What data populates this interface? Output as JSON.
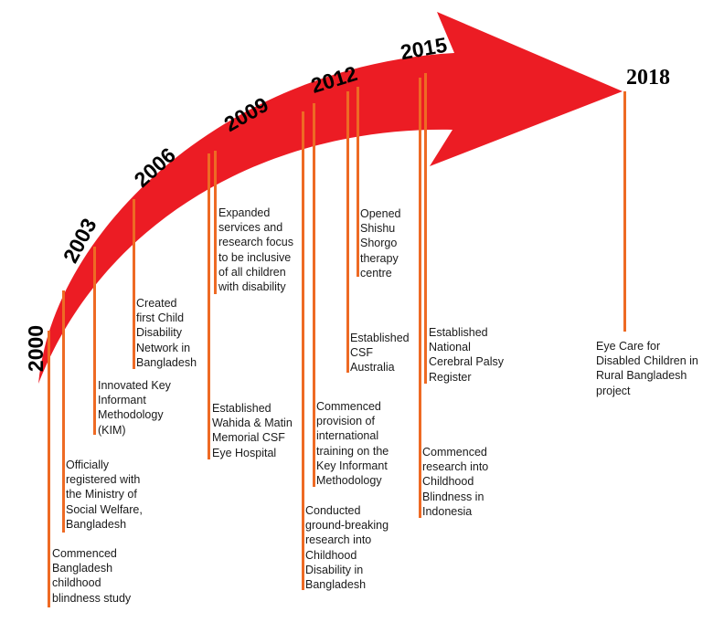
{
  "colors": {
    "arrow": "#ec1c24",
    "line": "#ee6a24"
  },
  "years": [
    "2000",
    "2003",
    "2006",
    "2009",
    "2012",
    "2015",
    "2018"
  ],
  "events": [
    "Commenced\nBangladesh\nchildhood\nblindness study",
    "Officially\nregistered with\nthe Ministry of\nSocial Welfare,\nBangladesh",
    "Innovated Key\nInformant\nMethodology\n(KIM)",
    "Created\nfirst Child\nDisability\nNetwork in\nBangladesh",
    "Established\nWahida & Matin\nMemorial CSF\nEye Hospital",
    "Expanded\nservices and\nresearch focus\nto be inclusive\nof all children\nwith disability",
    "Conducted\nground-breaking\nresearch into\nChildhood\nDisability in\nBangladesh",
    "Commenced\nprovision of\ninternational\ntraining on the\nKey Informant\nMethodology",
    "Established\nCSF\nAustralia",
    "Opened\nShishu\nShorgo\ntherapy\ncentre",
    "Commenced\nresearch into\nChildhood\nBlindness in\nIndonesia",
    "Established\nNational\nCerebral Palsy\nRegister",
    "Eye Care for\nDisabled Children in\nRural Bangladesh\nproject"
  ]
}
